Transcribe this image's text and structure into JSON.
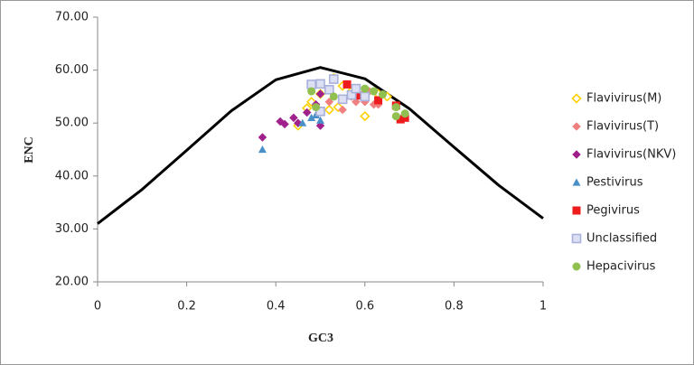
{
  "chart_data": {
    "type": "scatter",
    "x_label": "GC3",
    "y_label": "ENC",
    "xlim": [
      0,
      1
    ],
    "ylim": [
      20,
      70
    ],
    "xticks": [
      0,
      0.2,
      0.4,
      0.6,
      0.8,
      1
    ],
    "yticks": [
      {
        "value": 20,
        "label": "20.00"
      },
      {
        "value": 30,
        "label": "30.00"
      },
      {
        "value": 40,
        "label": "40.00"
      },
      {
        "value": 50,
        "label": "50.00"
      },
      {
        "value": 60,
        "label": "60.00"
      },
      {
        "value": 70,
        "label": "70.00"
      }
    ],
    "legend": "right",
    "curve": {
      "color": "#000000",
      "x": [
        0,
        0.1,
        0.2,
        0.3,
        0.4,
        0.5,
        0.6,
        0.7,
        0.8,
        0.9,
        1
      ],
      "values": [
        31,
        37.46,
        44.85,
        52.3,
        58.17,
        60.5,
        58.37,
        52.7,
        45.45,
        38.27,
        32
      ]
    },
    "series": [
      {
        "name": "Flavivirus(M)",
        "color": "#ffd000",
        "marker": "diamond-open",
        "x": [
          0.45,
          0.47,
          0.48,
          0.5,
          0.52,
          0.53,
          0.54,
          0.55,
          0.57,
          0.6,
          0.63,
          0.65
        ],
        "values": [
          49.5,
          52.8,
          54,
          55.5,
          52.5,
          58.5,
          53,
          57,
          56,
          51.3,
          55.5,
          55
        ]
      },
      {
        "name": "Flavivirus(T)",
        "color": "#f08080",
        "marker": "diamond",
        "x": [
          0.52,
          0.55,
          0.57,
          0.58,
          0.6,
          0.62,
          0.63,
          0.61
        ],
        "values": [
          54,
          52.5,
          55,
          54,
          54,
          53.5,
          53.5,
          56
        ]
      },
      {
        "name": "Flavivirus(NKV)",
        "color": "#a0208c",
        "marker": "diamond",
        "x": [
          0.37,
          0.41,
          0.42,
          0.44,
          0.45,
          0.47,
          0.49,
          0.5,
          0.5
        ],
        "values": [
          47.3,
          50.3,
          49.8,
          51,
          50,
          52,
          53.5,
          55.5,
          49.5
        ]
      },
      {
        "name": "Pestivirus",
        "color": "#4a90c8",
        "marker": "triangle",
        "x": [
          0.37,
          0.46,
          0.48,
          0.49,
          0.5
        ],
        "values": [
          45,
          50,
          51,
          51.5,
          50.5
        ]
      },
      {
        "name": "Pegivirus",
        "color": "#ee1c1c",
        "marker": "square",
        "x": [
          0.56,
          0.59,
          0.63,
          0.67,
          0.68,
          0.69
        ],
        "values": [
          57.3,
          55.2,
          54.3,
          53.3,
          50.7,
          51
        ]
      },
      {
        "name": "Unclassified",
        "color": "#a8b0dc",
        "marker": "square-open",
        "x": [
          0.48,
          0.5,
          0.52,
          0.53,
          0.5,
          0.57,
          0.6,
          0.58,
          0.55
        ],
        "values": [
          57.3,
          57.4,
          56.3,
          58.3,
          52.2,
          55.3,
          55,
          56.5,
          54.5
        ]
      },
      {
        "name": "Hepacivirus",
        "color": "#92c050",
        "marker": "circle",
        "x": [
          0.48,
          0.53,
          0.6,
          0.62,
          0.64,
          0.67,
          0.67,
          0.69,
          0.49
        ],
        "values": [
          56,
          55,
          56.5,
          56,
          55.4,
          53,
          51.3,
          51.8,
          53
        ]
      }
    ]
  }
}
